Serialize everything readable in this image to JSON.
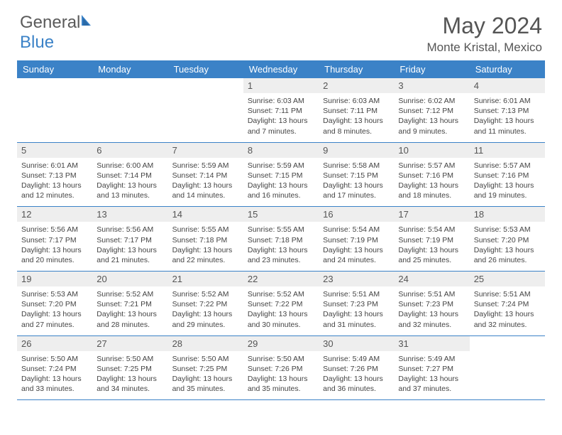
{
  "brand": {
    "part1": "General",
    "part2": "Blue"
  },
  "title": "May 2024",
  "location": "Monte Kristal, Mexico",
  "colors": {
    "header_bg": "#3b82c7",
    "header_text": "#ffffff",
    "daynum_bg": "#eeeeee",
    "text": "#444444",
    "border": "#3b82c7"
  },
  "dayNames": [
    "Sunday",
    "Monday",
    "Tuesday",
    "Wednesday",
    "Thursday",
    "Friday",
    "Saturday"
  ],
  "weeks": [
    [
      null,
      null,
      null,
      {
        "n": "1",
        "sr": "6:03 AM",
        "ss": "7:11 PM",
        "dl": "13 hours and 7 minutes."
      },
      {
        "n": "2",
        "sr": "6:03 AM",
        "ss": "7:11 PM",
        "dl": "13 hours and 8 minutes."
      },
      {
        "n": "3",
        "sr": "6:02 AM",
        "ss": "7:12 PM",
        "dl": "13 hours and 9 minutes."
      },
      {
        "n": "4",
        "sr": "6:01 AM",
        "ss": "7:13 PM",
        "dl": "13 hours and 11 minutes."
      }
    ],
    [
      {
        "n": "5",
        "sr": "6:01 AM",
        "ss": "7:13 PM",
        "dl": "13 hours and 12 minutes."
      },
      {
        "n": "6",
        "sr": "6:00 AM",
        "ss": "7:14 PM",
        "dl": "13 hours and 13 minutes."
      },
      {
        "n": "7",
        "sr": "5:59 AM",
        "ss": "7:14 PM",
        "dl": "13 hours and 14 minutes."
      },
      {
        "n": "8",
        "sr": "5:59 AM",
        "ss": "7:15 PM",
        "dl": "13 hours and 16 minutes."
      },
      {
        "n": "9",
        "sr": "5:58 AM",
        "ss": "7:15 PM",
        "dl": "13 hours and 17 minutes."
      },
      {
        "n": "10",
        "sr": "5:57 AM",
        "ss": "7:16 PM",
        "dl": "13 hours and 18 minutes."
      },
      {
        "n": "11",
        "sr": "5:57 AM",
        "ss": "7:16 PM",
        "dl": "13 hours and 19 minutes."
      }
    ],
    [
      {
        "n": "12",
        "sr": "5:56 AM",
        "ss": "7:17 PM",
        "dl": "13 hours and 20 minutes."
      },
      {
        "n": "13",
        "sr": "5:56 AM",
        "ss": "7:17 PM",
        "dl": "13 hours and 21 minutes."
      },
      {
        "n": "14",
        "sr": "5:55 AM",
        "ss": "7:18 PM",
        "dl": "13 hours and 22 minutes."
      },
      {
        "n": "15",
        "sr": "5:55 AM",
        "ss": "7:18 PM",
        "dl": "13 hours and 23 minutes."
      },
      {
        "n": "16",
        "sr": "5:54 AM",
        "ss": "7:19 PM",
        "dl": "13 hours and 24 minutes."
      },
      {
        "n": "17",
        "sr": "5:54 AM",
        "ss": "7:19 PM",
        "dl": "13 hours and 25 minutes."
      },
      {
        "n": "18",
        "sr": "5:53 AM",
        "ss": "7:20 PM",
        "dl": "13 hours and 26 minutes."
      }
    ],
    [
      {
        "n": "19",
        "sr": "5:53 AM",
        "ss": "7:20 PM",
        "dl": "13 hours and 27 minutes."
      },
      {
        "n": "20",
        "sr": "5:52 AM",
        "ss": "7:21 PM",
        "dl": "13 hours and 28 minutes."
      },
      {
        "n": "21",
        "sr": "5:52 AM",
        "ss": "7:22 PM",
        "dl": "13 hours and 29 minutes."
      },
      {
        "n": "22",
        "sr": "5:52 AM",
        "ss": "7:22 PM",
        "dl": "13 hours and 30 minutes."
      },
      {
        "n": "23",
        "sr": "5:51 AM",
        "ss": "7:23 PM",
        "dl": "13 hours and 31 minutes."
      },
      {
        "n": "24",
        "sr": "5:51 AM",
        "ss": "7:23 PM",
        "dl": "13 hours and 32 minutes."
      },
      {
        "n": "25",
        "sr": "5:51 AM",
        "ss": "7:24 PM",
        "dl": "13 hours and 32 minutes."
      }
    ],
    [
      {
        "n": "26",
        "sr": "5:50 AM",
        "ss": "7:24 PM",
        "dl": "13 hours and 33 minutes."
      },
      {
        "n": "27",
        "sr": "5:50 AM",
        "ss": "7:25 PM",
        "dl": "13 hours and 34 minutes."
      },
      {
        "n": "28",
        "sr": "5:50 AM",
        "ss": "7:25 PM",
        "dl": "13 hours and 35 minutes."
      },
      {
        "n": "29",
        "sr": "5:50 AM",
        "ss": "7:26 PM",
        "dl": "13 hours and 35 minutes."
      },
      {
        "n": "30",
        "sr": "5:49 AM",
        "ss": "7:26 PM",
        "dl": "13 hours and 36 minutes."
      },
      {
        "n": "31",
        "sr": "5:49 AM",
        "ss": "7:27 PM",
        "dl": "13 hours and 37 minutes."
      },
      null
    ]
  ],
  "labels": {
    "sunrise": "Sunrise:",
    "sunset": "Sunset:",
    "daylight": "Daylight:"
  }
}
